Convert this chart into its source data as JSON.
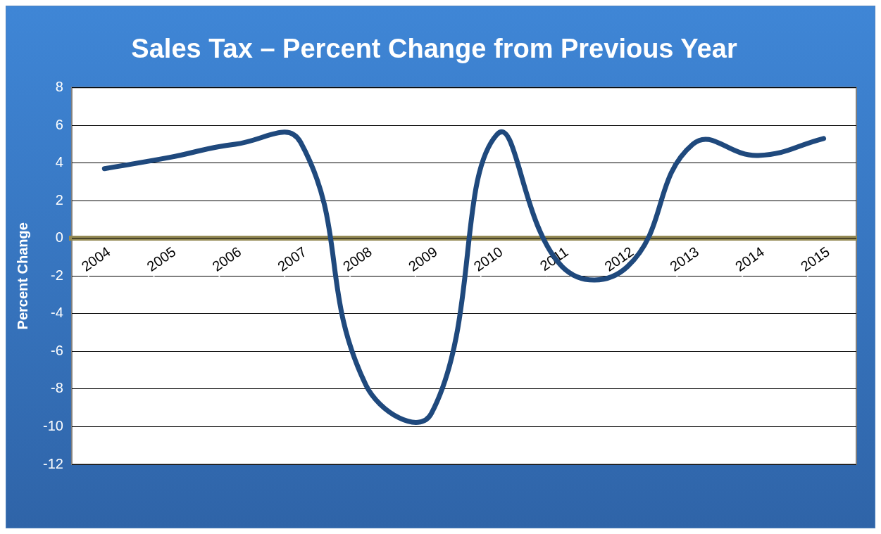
{
  "chart_data": {
    "type": "line",
    "title": "Sales Tax – Percent Change from Previous Year",
    "ylabel": "Percent Change",
    "categories": [
      "2004",
      "2005",
      "2006",
      "2007",
      "2008",
      "2009",
      "2010",
      "2011",
      "2012",
      "2013",
      "2014",
      "2015"
    ],
    "series": [
      {
        "color": "#1f497d",
        "values": [
          3.7,
          4.3,
          5.0,
          5.1,
          -7.8,
          -9.3,
          5.5,
          -1.5,
          -1.5,
          5.0,
          4.4,
          5.3
        ]
      }
    ],
    "ylim": [
      -12,
      8
    ],
    "yticks": [
      -12,
      -10,
      -8,
      -6,
      -4,
      -2,
      0,
      2,
      4,
      6,
      8
    ],
    "grid": "y",
    "legend": false,
    "marker": "none",
    "line_style": "solid"
  }
}
